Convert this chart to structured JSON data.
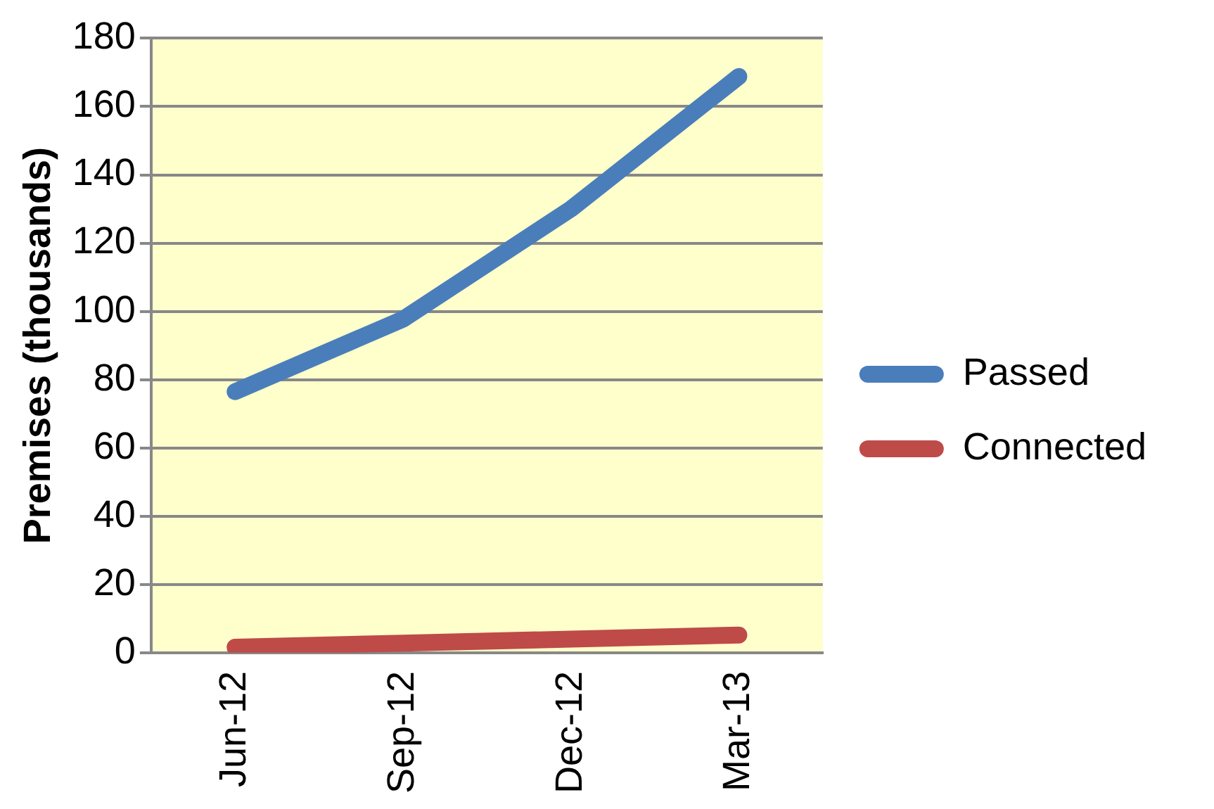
{
  "chart_data": {
    "type": "line",
    "ylabel": "Premises (thousands)",
    "categories": [
      "Jun-12",
      "Sep-12",
      "Dec-12",
      "Mar-13"
    ],
    "series": [
      {
        "name": "Passed",
        "color": "#4a7ebb",
        "values": [
          76.5,
          97.7,
          130,
          168.8
        ]
      },
      {
        "name": "Connected",
        "color": "#be4b48",
        "values": [
          1.6,
          2.8,
          4,
          5.2
        ]
      }
    ],
    "ylim": [
      0,
      180
    ],
    "yticks": [
      0,
      20,
      40,
      60,
      80,
      100,
      120,
      140,
      160,
      180
    ],
    "grid": "y",
    "legend": "right",
    "marker": "none",
    "line_style": "solid"
  }
}
